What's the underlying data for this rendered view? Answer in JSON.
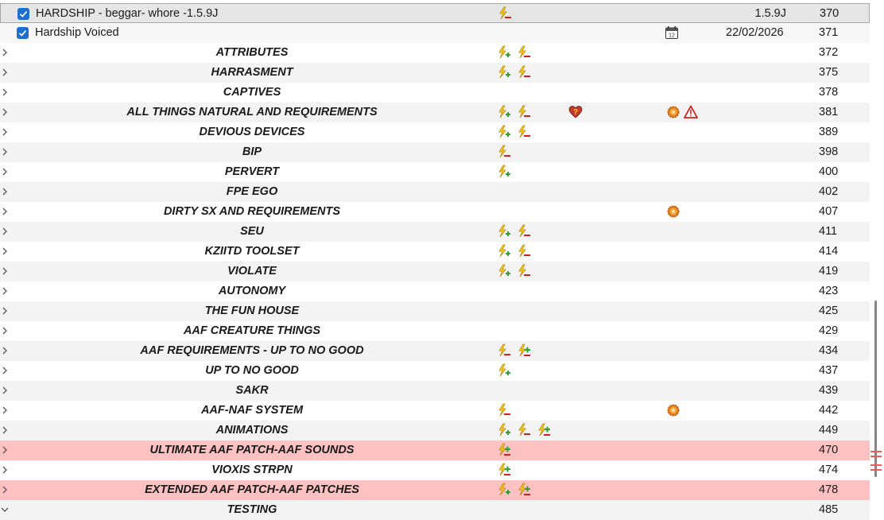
{
  "mod_list": {
    "rows": [
      {
        "kind": "mod",
        "name": "HARDSHIP - beggar- whore -1.5.9J",
        "checked": true,
        "flags": [
          "minus"
        ],
        "version": "1.5.9J",
        "date": "",
        "priority": "370",
        "style": "sel"
      },
      {
        "kind": "mod",
        "name": "Hardship Voiced",
        "checked": true,
        "flags": [
          "calendar"
        ],
        "version": "",
        "date": "22/02/2026",
        "priority": "371",
        "style": "mod"
      },
      {
        "kind": "sep",
        "name": "ATTRIBUTES",
        "flags": [
          "plus",
          "minus"
        ],
        "priority": "372",
        "style": ""
      },
      {
        "kind": "sep",
        "name": "HARRASMENT",
        "flags": [
          "plus",
          "minus"
        ],
        "priority": "375",
        "style": "alt"
      },
      {
        "kind": "sep",
        "name": "CAPTIVES",
        "flags": [],
        "priority": "378",
        "style": ""
      },
      {
        "kind": "sep",
        "name": "ALL THINGS NATURAL AND REQUIREMENTS",
        "flags": [
          "plus",
          "minus",
          "heart",
          "gear",
          "warning"
        ],
        "priority": "381",
        "style": "alt"
      },
      {
        "kind": "sep",
        "name": "DEVIOUS DEVICES",
        "flags": [
          "plus",
          "minus"
        ],
        "priority": "389",
        "style": ""
      },
      {
        "kind": "sep",
        "name": "BIP",
        "flags": [
          "minus"
        ],
        "priority": "398",
        "style": "alt"
      },
      {
        "kind": "sep",
        "name": "PERVERT",
        "flags": [
          "plus"
        ],
        "priority": "400",
        "style": ""
      },
      {
        "kind": "sep",
        "name": "FPE EGO",
        "flags": [],
        "priority": "402",
        "style": "alt"
      },
      {
        "kind": "sep",
        "name": "DIRTY SX AND REQUIREMENTS",
        "flags": [
          "gear"
        ],
        "priority": "407",
        "style": ""
      },
      {
        "kind": "sep",
        "name": "SEU",
        "flags": [
          "plus",
          "minus"
        ],
        "priority": "411",
        "style": "alt"
      },
      {
        "kind": "sep",
        "name": "KZIITD TOOLSET",
        "flags": [
          "plus",
          "minus"
        ],
        "priority": "414",
        "style": ""
      },
      {
        "kind": "sep",
        "name": "VIOLATE",
        "flags": [
          "plus",
          "minus"
        ],
        "priority": "419",
        "style": "alt"
      },
      {
        "kind": "sep",
        "name": "AUTONOMY",
        "flags": [],
        "priority": "423",
        "style": ""
      },
      {
        "kind": "sep",
        "name": "THE FUN HOUSE",
        "flags": [],
        "priority": "425",
        "style": "alt"
      },
      {
        "kind": "sep",
        "name": "AAF CREATURE THINGS",
        "flags": [],
        "priority": "429",
        "style": ""
      },
      {
        "kind": "sep",
        "name": "AAF REQUIREMENTS - UP TO NO GOOD",
        "flags": [
          "minus",
          "plusminus"
        ],
        "priority": "434",
        "style": "alt"
      },
      {
        "kind": "sep",
        "name": "UP TO NO GOOD",
        "flags": [
          "plus"
        ],
        "priority": "437",
        "style": ""
      },
      {
        "kind": "sep",
        "name": "SAKR",
        "flags": [],
        "priority": "439",
        "style": "alt"
      },
      {
        "kind": "sep",
        "name": "AAF-NAF SYSTEM",
        "flags": [
          "minus",
          "gear"
        ],
        "priority": "442",
        "style": ""
      },
      {
        "kind": "sep",
        "name": "ANIMATIONS",
        "flags": [
          "plus",
          "minus",
          "plusminus"
        ],
        "priority": "449",
        "style": "alt"
      },
      {
        "kind": "sep",
        "name": "ULTIMATE AAF PATCH-AAF SOUNDS",
        "flags": [
          "plusminus"
        ],
        "priority": "470",
        "style": "hl"
      },
      {
        "kind": "sep",
        "name": "VIOXIS STRPN",
        "flags": [
          "plusminus"
        ],
        "priority": "474",
        "style": ""
      },
      {
        "kind": "sep",
        "name": "EXTENDED AAF PATCH-AAF PATCHES",
        "flags": [
          "plus",
          "plusminus"
        ],
        "priority": "478",
        "style": "hl"
      },
      {
        "kind": "sep",
        "name": "TESTING",
        "flags": [],
        "priority": "485",
        "style": "alt",
        "expanded": true
      }
    ]
  },
  "colors": {
    "highlight_row": "#ffc1c1",
    "selected_row": "#e6e6e6",
    "checkbox": "#1f6fcf",
    "scroll_mark": "#f05a5a"
  }
}
